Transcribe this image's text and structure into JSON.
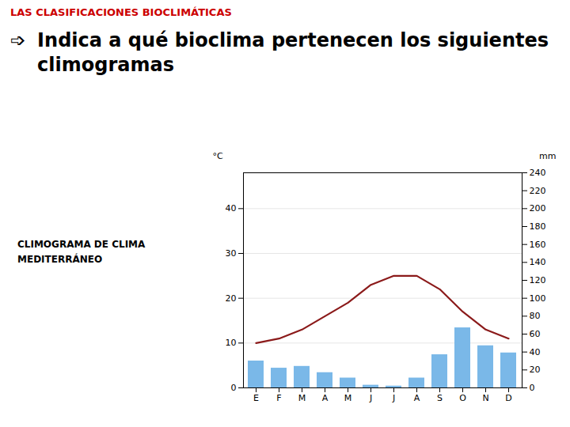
{
  "chart_data": {
    "type": "bar",
    "title": "LAS CLASIFICACIONES BIOCLIMÁTICAS",
    "subtitle": "Indica a qué bioclima pertenecen los siguientes climogramas",
    "annotations": [
      "➩",
      "CLIMOGRAMA DE CLIMA",
      "MEDITERRÁNEO"
    ],
    "categories": [
      "E",
      "F",
      "M",
      "A",
      "M",
      "J",
      "J",
      "A",
      "S",
      "O",
      "N",
      "D"
    ],
    "series": [
      {
        "type": "bar",
        "axis": "y2",
        "color": "#7ab8e8",
        "values": [
          30,
          22,
          24,
          17,
          11,
          3,
          2,
          11,
          37,
          67,
          47,
          39
        ]
      },
      {
        "type": "line",
        "color": "#8b1a1a",
        "values": [
          10,
          11,
          13,
          16,
          19,
          23,
          25,
          25,
          22,
          17,
          13,
          11
        ]
      }
    ],
    "ylabel": "°C",
    "ylim": [
      0,
      48
    ],
    "yticks": [
      0,
      10,
      20,
      30,
      40
    ],
    "y2label": "mm",
    "y2lim": [
      0,
      240
    ],
    "y2ticks": [
      0,
      20,
      40,
      60,
      80,
      100,
      120,
      140,
      160,
      180,
      200,
      220,
      240
    ],
    "grid": true
  }
}
